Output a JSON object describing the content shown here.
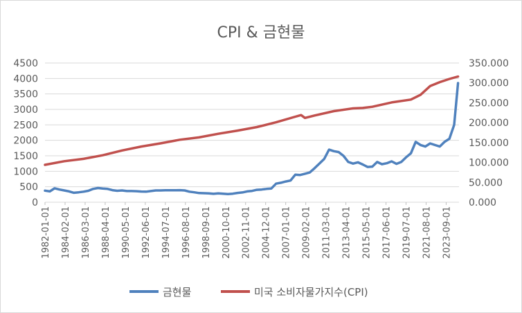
{
  "chart_data": {
    "type": "line",
    "title": "CPI & 금현물",
    "left_axis": {
      "ylim": [
        0,
        4500
      ],
      "ticks": [
        "4500",
        "4000",
        "3500",
        "3000",
        "2500",
        "2000",
        "1500",
        "1000",
        "500",
        "0"
      ]
    },
    "right_axis": {
      "ylim": [
        0,
        350
      ],
      "ticks": [
        "350.000",
        "300.000",
        "250.000",
        "200.000",
        "150.000",
        "100.000",
        "50.000",
        "0.000"
      ]
    },
    "x_tick_labels": [
      "1982-01-01",
      "1984-02-01",
      "1986-03-01",
      "1988-04-01",
      "1990-05-01",
      "1992-06-01",
      "1994-07-01",
      "1996-08-01",
      "1998-09-01",
      "2000-10-01",
      "2002-11-01",
      "2004-12-01",
      "2007-01-01",
      "2009-02-01",
      "2011-03-01",
      "2013-04-01",
      "2015-05-01",
      "2017-06-01",
      "2019-07-01",
      "2021-08-01",
      "2023-09-01"
    ],
    "x_range": [
      1982.0,
      2025.0
    ],
    "grid": true,
    "legend_position": "bottom",
    "series": [
      {
        "name": "금현물",
        "axis": "left",
        "color": "#4f81bd",
        "x": [
          1982.0,
          1982.5,
          1983.0,
          1983.5,
          1984.0,
          1984.5,
          1985.0,
          1985.5,
          1986.0,
          1986.5,
          1987.0,
          1987.5,
          1988.0,
          1988.5,
          1989.0,
          1989.5,
          1990.0,
          1990.5,
          1991.0,
          1991.5,
          1992.0,
          1992.5,
          1993.0,
          1993.5,
          1994.0,
          1994.5,
          1995.0,
          1995.5,
          1996.0,
          1996.5,
          1997.0,
          1997.5,
          1998.0,
          1998.5,
          1999.0,
          1999.5,
          2000.0,
          2000.5,
          2001.0,
          2001.5,
          2002.0,
          2002.5,
          2003.0,
          2003.5,
          2004.0,
          2004.5,
          2005.0,
          2005.5,
          2006.0,
          2006.5,
          2007.0,
          2007.5,
          2008.0,
          2008.5,
          2009.0,
          2009.5,
          2010.0,
          2010.5,
          2011.0,
          2011.5,
          2012.0,
          2012.5,
          2013.0,
          2013.5,
          2014.0,
          2014.5,
          2015.0,
          2015.5,
          2016.0,
          2016.5,
          2017.0,
          2017.5,
          2018.0,
          2018.5,
          2019.0,
          2019.5,
          2020.0,
          2020.5,
          2021.0,
          2021.5,
          2022.0,
          2022.5,
          2023.0,
          2023.5,
          2024.0,
          2024.5,
          2024.9
        ],
        "values": [
          375,
          350,
          450,
          410,
          380,
          350,
          305,
          320,
          340,
          370,
          430,
          460,
          440,
          430,
          390,
          370,
          380,
          360,
          360,
          355,
          345,
          340,
          360,
          380,
          380,
          385,
          385,
          385,
          390,
          380,
          340,
          320,
          295,
          290,
          285,
          270,
          285,
          275,
          265,
          275,
          300,
          315,
          350,
          365,
          400,
          410,
          430,
          440,
          600,
          630,
          670,
          700,
          890,
          880,
          920,
          960,
          1100,
          1250,
          1400,
          1700,
          1650,
          1620,
          1500,
          1300,
          1250,
          1290,
          1220,
          1140,
          1150,
          1300,
          1230,
          1260,
          1320,
          1240,
          1300,
          1450,
          1580,
          1950,
          1850,
          1800,
          1900,
          1850,
          1800,
          1950,
          2050,
          2500,
          3850
        ]
      },
      {
        "name": "미국 소비자물가지수(CPI)",
        "axis": "right",
        "color": "#c0504d",
        "x": [
          1982.0,
          1984.0,
          1986.0,
          1988.0,
          1990.0,
          1992.0,
          1994.0,
          1996.0,
          1998.0,
          2000.0,
          2002.0,
          2004.0,
          2006.0,
          2008.0,
          2008.6,
          2009.0,
          2010.0,
          2012.0,
          2014.0,
          2015.0,
          2016.0,
          2018.0,
          2020.0,
          2021.0,
          2022.0,
          2023.0,
          2024.0,
          2024.9
        ],
        "values": [
          94,
          103,
          109,
          118,
          130,
          140,
          148,
          157,
          163,
          172,
          180,
          189,
          201,
          215,
          219,
          212,
          218,
          229,
          236,
          237,
          240,
          251,
          258,
          270,
          292,
          302,
          310,
          316
        ]
      }
    ]
  }
}
